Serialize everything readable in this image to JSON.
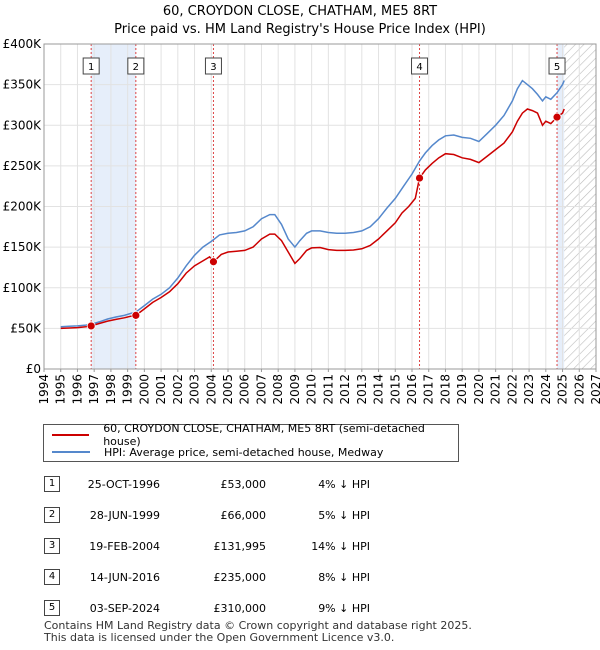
{
  "title": "60, CROYDON CLOSE, CHATHAM, ME5 8RT",
  "subtitle": "Price paid vs. HM Land Registry's House Price Index (HPI)",
  "colors": {
    "price": "#cc0000",
    "hpi": "#5588cc",
    "shade": "#e6eefa",
    "vline": "#dd4444"
  },
  "chart_data": {
    "type": "line",
    "title": "60, CROYDON CLOSE, CHATHAM, ME5 8RT",
    "subtitle": "Price paid vs. HM Land Registry's House Price Index (HPI)",
    "xlim": [
      1994,
      2027
    ],
    "ylim": [
      0,
      400000
    ],
    "x_ticks": [
      1994,
      1995,
      1996,
      1997,
      1998,
      1999,
      2000,
      2001,
      2002,
      2003,
      2004,
      2005,
      2006,
      2007,
      2008,
      2009,
      2010,
      2011,
      2012,
      2013,
      2014,
      2015,
      2016,
      2017,
      2018,
      2019,
      2020,
      2021,
      2022,
      2023,
      2024,
      2025,
      2026,
      2027
    ],
    "y_ticks": [
      0,
      50000,
      100000,
      150000,
      200000,
      250000,
      300000,
      350000,
      400000
    ],
    "y_tick_labels": [
      "£0",
      "£50K",
      "£100K",
      "£150K",
      "£200K",
      "£250K",
      "£300K",
      "£350K",
      "£400K"
    ],
    "shaded_ranges": [
      [
        1996.82,
        1999.49
      ],
      [
        2024.67,
        2025.1
      ]
    ],
    "hatch_from": 2025.1,
    "series": [
      {
        "name": "60, CROYDON CLOSE, CHATHAM, ME5 8RT (semi-detached house)",
        "x": [
          1995.0,
          1995.5,
          1996.0,
          1996.5,
          1996.82,
          1997.3,
          1997.8,
          1998.3,
          1998.8,
          1999.2,
          1999.49,
          2000.0,
          2000.5,
          2001.0,
          2001.5,
          2002.0,
          2002.5,
          2003.0,
          2003.5,
          2003.9,
          2004.13,
          2004.6,
          2005.0,
          2005.5,
          2006.0,
          2006.5,
          2007.0,
          2007.5,
          2007.8,
          2008.2,
          2008.6,
          2009.0,
          2009.3,
          2009.7,
          2010.0,
          2010.5,
          2011.0,
          2011.5,
          2012.0,
          2012.5,
          2013.0,
          2013.5,
          2014.0,
          2014.5,
          2015.0,
          2015.4,
          2015.8,
          2016.2,
          2016.45,
          2016.8,
          2017.2,
          2017.6,
          2018.0,
          2018.5,
          2019.0,
          2019.5,
          2020.0,
          2020.5,
          2021.0,
          2021.5,
          2022.0,
          2022.3,
          2022.6,
          2022.9,
          2023.2,
          2023.5,
          2023.8,
          2024.0,
          2024.3,
          2024.67,
          2025.0,
          2025.1
        ],
        "values": [
          50000,
          50500,
          51000,
          52000,
          53000,
          56000,
          59000,
          61000,
          63000,
          65000,
          66000,
          74000,
          82000,
          88000,
          95000,
          105000,
          118000,
          127000,
          133000,
          138000,
          131995,
          141000,
          144000,
          145000,
          146000,
          150000,
          160000,
          166000,
          166000,
          158000,
          144000,
          130000,
          136000,
          146000,
          149000,
          149500,
          147000,
          146000,
          146000,
          146500,
          148000,
          152000,
          160000,
          170000,
          180000,
          192000,
          200000,
          210000,
          235000,
          245000,
          253000,
          260000,
          265000,
          264000,
          260000,
          258000,
          254000,
          262000,
          270000,
          278000,
          292000,
          305000,
          315000,
          320000,
          318000,
          315000,
          300000,
          305000,
          302000,
          310000,
          315000,
          320000
        ]
      },
      {
        "name": "HPI: Average price, semi-detached house, Medway",
        "x": [
          1995.0,
          1995.5,
          1996.0,
          1996.5,
          1996.82,
          1997.3,
          1997.8,
          1998.3,
          1998.8,
          1999.2,
          1999.49,
          2000.0,
          2000.5,
          2001.0,
          2001.5,
          2002.0,
          2002.5,
          2003.0,
          2003.5,
          2004.0,
          2004.5,
          2005.0,
          2005.5,
          2006.0,
          2006.5,
          2007.0,
          2007.5,
          2007.8,
          2008.2,
          2008.6,
          2009.0,
          2009.3,
          2009.7,
          2010.0,
          2010.5,
          2011.0,
          2011.5,
          2012.0,
          2012.5,
          2013.0,
          2013.5,
          2014.0,
          2014.5,
          2015.0,
          2015.5,
          2016.0,
          2016.45,
          2016.8,
          2017.2,
          2017.6,
          2018.0,
          2018.5,
          2019.0,
          2019.5,
          2020.0,
          2020.5,
          2021.0,
          2021.5,
          2022.0,
          2022.3,
          2022.6,
          2022.9,
          2023.2,
          2023.5,
          2023.8,
          2024.0,
          2024.3,
          2024.67,
          2025.0,
          2025.1
        ],
        "values": [
          52000,
          52500,
          53000,
          54000,
          55000,
          58000,
          61500,
          64000,
          66000,
          68500,
          70000,
          78000,
          86000,
          92000,
          100000,
          112000,
          127000,
          140000,
          150000,
          157000,
          165000,
          167000,
          168000,
          170000,
          175000,
          185000,
          190000,
          190000,
          178000,
          160000,
          150000,
          158000,
          167000,
          170000,
          170000,
          168000,
          167000,
          167000,
          168000,
          170000,
          175000,
          185000,
          198000,
          210000,
          225000,
          240000,
          256000,
          266000,
          275000,
          282000,
          287000,
          288000,
          285000,
          284000,
          280000,
          290000,
          300000,
          312000,
          330000,
          345000,
          355000,
          350000,
          345000,
          338000,
          330000,
          335000,
          332000,
          340000,
          350000,
          355000
        ]
      }
    ],
    "sales": [
      {
        "label": "1",
        "x": 1996.82,
        "value": 53000
      },
      {
        "label": "2",
        "x": 1999.49,
        "value": 66000
      },
      {
        "label": "3",
        "x": 2004.13,
        "value": 131995
      },
      {
        "label": "4",
        "x": 2016.45,
        "value": 235000
      },
      {
        "label": "5",
        "x": 2024.67,
        "value": 310000
      }
    ]
  },
  "legend": {
    "price_label": "60, CROYDON CLOSE, CHATHAM, ME5 8RT (semi-detached house)",
    "hpi_label": "HPI: Average price, semi-detached house, Medway"
  },
  "transactions": [
    {
      "num": "1",
      "date": "25-OCT-1996",
      "price": "£53,000",
      "hpi": "4% ↓ HPI"
    },
    {
      "num": "2",
      "date": "28-JUN-1999",
      "price": "£66,000",
      "hpi": "5% ↓ HPI"
    },
    {
      "num": "3",
      "date": "19-FEB-2004",
      "price": "£131,995",
      "hpi": "14% ↓ HPI"
    },
    {
      "num": "4",
      "date": "14-JUN-2016",
      "price": "£235,000",
      "hpi": "8% ↓ HPI"
    },
    {
      "num": "5",
      "date": "03-SEP-2024",
      "price": "£310,000",
      "hpi": "9% ↓ HPI"
    }
  ],
  "footer": {
    "line1": "Contains HM Land Registry data © Crown copyright and database right 2025.",
    "line2": "This data is licensed under the Open Government Licence v3.0."
  }
}
